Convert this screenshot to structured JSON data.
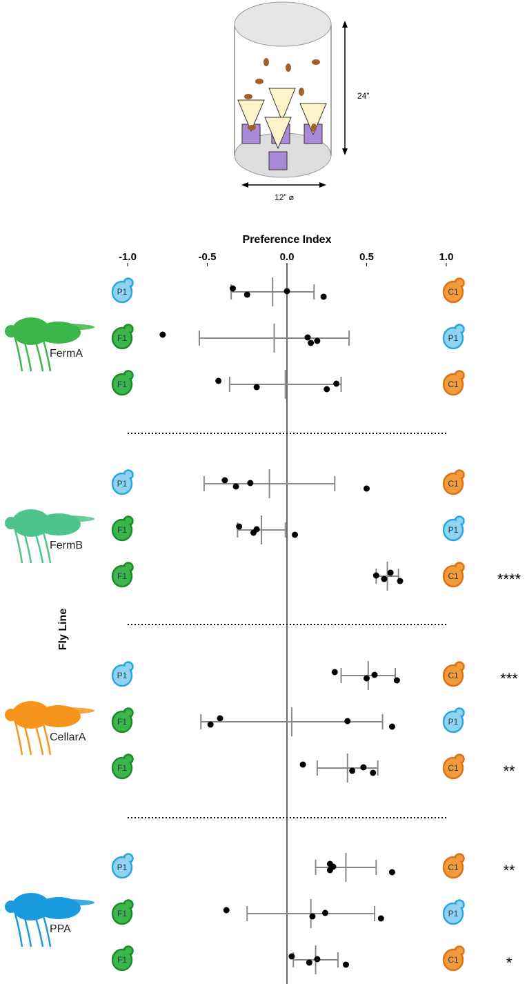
{
  "apparatus": {
    "height_label": "24”",
    "diameter_label": "12” ⌀"
  },
  "chart_data": {
    "type": "dotplot",
    "xlabel": "Preference Index",
    "ylabel": "Fly Line",
    "xlim": [
      -1,
      1
    ],
    "xticks": [
      {
        "value": -1,
        "label": "-1.0"
      },
      -0.5,
      {
        "value": 0,
        "label": "0.0"
      },
      0.5,
      {
        "value": 1,
        "label": "1.0"
      }
    ],
    "point_color": "#000000",
    "bar_color": "#888888",
    "token_colors": {
      "P1": {
        "fill": "#8fd3f0",
        "stroke": "#2aa6dc"
      },
      "C1": {
        "fill": "#f39a3a",
        "stroke": "#d9731c"
      },
      "F1": {
        "fill": "#3cb54a",
        "stroke": "#1f8a2c"
      }
    },
    "groups": [
      {
        "name": "FermA",
        "color": "#3cb54a",
        "rows": [
          {
            "left": "P1",
            "right": "C1",
            "points": [
              -0.34,
              -0.25,
              0.0,
              0.23
            ],
            "mean": -0.09,
            "sd": 0.26
          },
          {
            "left": "F1",
            "right": "P1",
            "points": [
              -0.78,
              0.19,
              0.13,
              0.15
            ],
            "mean": -0.08,
            "sd": 0.47
          },
          {
            "left": "F1",
            "right": "C1",
            "points": [
              -0.43,
              -0.19,
              0.31,
              0.25
            ],
            "mean": -0.01,
            "sd": 0.35
          }
        ]
      },
      {
        "name": "FermB",
        "color": "#4cc48a",
        "rows": [
          {
            "left": "P1",
            "right": "C1",
            "points": [
              -0.39,
              -0.32,
              -0.23,
              0.5
            ],
            "mean": -0.11,
            "sd": 0.41
          },
          {
            "left": "F1",
            "right": "P1",
            "points": [
              -0.3,
              -0.21,
              -0.19,
              0.05
            ],
            "mean": -0.16,
            "sd": 0.15
          },
          {
            "left": "F1",
            "right": "C1",
            "points": [
              0.65,
              0.61,
              0.56,
              0.71
            ],
            "mean": 0.63,
            "sd": 0.07,
            "significance": "****"
          }
        ]
      },
      {
        "name": "CellarA",
        "color": "#f7941d",
        "rows": [
          {
            "left": "P1",
            "right": "C1",
            "points": [
              0.3,
              0.5,
              0.55,
              0.69
            ],
            "mean": 0.51,
            "sd": 0.17,
            "significance": "***"
          },
          {
            "left": "F1",
            "right": "P1",
            "points": [
              -0.42,
              -0.48,
              0.38,
              0.66
            ],
            "mean": 0.03,
            "sd": 0.57
          },
          {
            "left": "F1",
            "right": "C1",
            "points": [
              0.1,
              0.41,
              0.48,
              0.54
            ],
            "mean": 0.38,
            "sd": 0.19,
            "significance": "**"
          }
        ]
      },
      {
        "name": "PPA",
        "color": "#1b9ae0",
        "rows": [
          {
            "left": "P1",
            "right": "C1",
            "points": [
              0.27,
              0.27,
              0.29,
              0.66
            ],
            "mean": 0.37,
            "sd": 0.19,
            "significance": "**"
          },
          {
            "left": "F1",
            "right": "P1",
            "points": [
              -0.38,
              0.16,
              0.24,
              0.59
            ],
            "mean": 0.15,
            "sd": 0.4
          },
          {
            "left": "F1",
            "right": "C1",
            "points": [
              0.03,
              0.14,
              0.19,
              0.37
            ],
            "mean": 0.18,
            "sd": 0.14,
            "significance": "*"
          }
        ]
      }
    ]
  }
}
